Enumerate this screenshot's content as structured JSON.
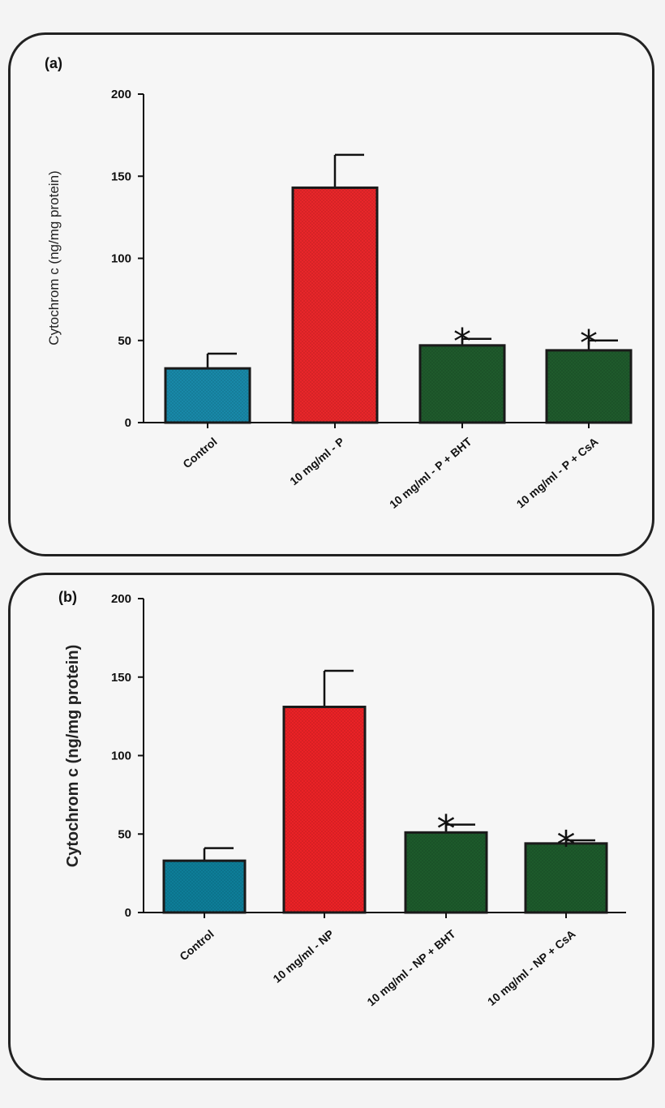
{
  "chart_data": [
    {
      "type": "bar",
      "panel_label": "(a)",
      "title": "",
      "xlabel": "",
      "ylabel": "Cytochrom c (ng/mg protein)",
      "ylim": [
        0,
        200
      ],
      "yticks": [
        "0",
        "50",
        "100",
        "150",
        "200"
      ],
      "categories": [
        "Control",
        "10 mg/ml - P",
        "10 mg/ml - P + BHT",
        "10 mg/ml - P + CsA"
      ],
      "values": [
        33,
        143,
        47,
        44
      ],
      "errors": [
        9,
        20,
        4,
        6
      ],
      "annotations": [
        "",
        "",
        "*",
        "*"
      ],
      "bar_colors": [
        "#1888a8",
        "#e8262a",
        "#1f5a2c",
        "#1f5a2c"
      ],
      "grid": false,
      "legend": "none"
    },
    {
      "type": "bar",
      "panel_label": "(b)",
      "title": "",
      "xlabel": "",
      "ylabel": "Cytochrom c (ng/mg protein)",
      "ylim": [
        0,
        200
      ],
      "yticks": [
        "0",
        "50",
        "100",
        "150",
        "200"
      ],
      "categories": [
        "Control",
        "10 mg/ml - NP",
        "10 mg/ml - NP + BHT",
        "10 mg/ml - NP + CsA"
      ],
      "values": [
        33,
        131,
        51,
        44
      ],
      "errors": [
        8,
        23,
        5,
        2
      ],
      "annotations": [
        "",
        "",
        "*",
        "*"
      ],
      "bar_colors": [
        "#0d7d98",
        "#ea2226",
        "#1d5a2b",
        "#1d5a2b"
      ],
      "grid": false,
      "legend": "none"
    }
  ]
}
